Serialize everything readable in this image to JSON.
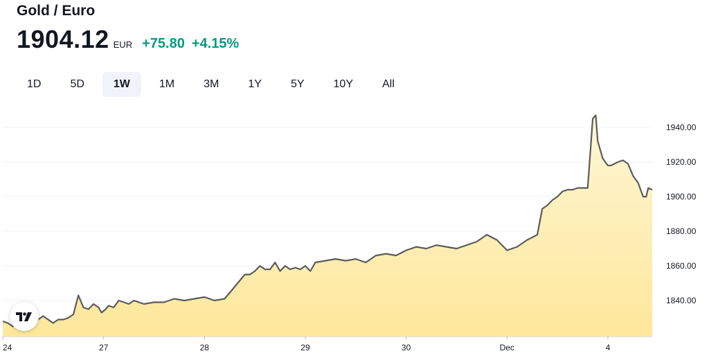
{
  "header": {
    "title": "Gold / Euro",
    "price": "1904.12",
    "currency": "EUR",
    "change": "+75.80",
    "change_pct": "+4.15%"
  },
  "colors": {
    "line": "#5b5b5b",
    "fill_top": "#fde79a",
    "fill_bottom": "#fff7d6",
    "positive": "#089981",
    "active_bg": "#f0f3fa"
  },
  "ranges": [
    "1D",
    "5D",
    "1W",
    "1M",
    "3M",
    "1Y",
    "5Y",
    "10Y",
    "All"
  ],
  "active_range": "1W",
  "chart_data": {
    "type": "area",
    "title": "Gold / Euro",
    "xlabel": "",
    "ylabel": "",
    "ylim": [
      1820,
      1950
    ],
    "xlim": [
      0,
      6.44
    ],
    "grid": "horizontal",
    "x_ticks": [
      {
        "x": 0,
        "label": "24"
      },
      {
        "x": 1,
        "label": "27"
      },
      {
        "x": 2,
        "label": "28"
      },
      {
        "x": 3,
        "label": "29"
      },
      {
        "x": 4,
        "label": "30"
      },
      {
        "x": 5,
        "label": "Dec"
      },
      {
        "x": 6,
        "label": "4"
      }
    ],
    "y_ticks": [
      1840,
      1860,
      1880,
      1900,
      1920,
      1940
    ],
    "series": [
      {
        "name": "",
        "x": [
          0,
          0.05,
          0.1,
          0.2,
          0.3,
          0.4,
          0.5,
          0.55,
          0.6,
          0.65,
          0.7,
          0.75,
          0.8,
          0.85,
          0.9,
          0.95,
          0.98,
          1.02,
          1.05,
          1.1,
          1.15,
          1.2,
          1.25,
          1.3,
          1.4,
          1.5,
          1.6,
          1.7,
          1.8,
          1.9,
          2.0,
          2.1,
          2.2,
          2.3,
          2.4,
          2.45,
          2.5,
          2.55,
          2.6,
          2.65,
          2.7,
          2.75,
          2.8,
          2.85,
          2.9,
          2.95,
          3.0,
          3.05,
          3.1,
          3.2,
          3.3,
          3.4,
          3.5,
          3.6,
          3.7,
          3.8,
          3.9,
          4.0,
          4.1,
          4.2,
          4.3,
          4.4,
          4.5,
          4.6,
          4.7,
          4.8,
          4.9,
          5.0,
          5.1,
          5.2,
          5.3,
          5.35,
          5.4,
          5.45,
          5.5,
          5.55,
          5.6,
          5.65,
          5.7,
          5.75,
          5.8,
          5.85,
          5.88,
          5.9,
          5.95,
          6.0,
          6.03,
          6.1,
          6.15,
          6.2,
          6.25,
          6.3,
          6.35,
          6.38,
          6.4,
          6.44
        ],
        "values": [
          1828,
          1827,
          1825,
          1829,
          1827,
          1831,
          1827,
          1829,
          1829,
          1830,
          1832,
          1843,
          1836,
          1835,
          1838,
          1836,
          1833,
          1835,
          1837,
          1836,
          1840,
          1839,
          1838,
          1840,
          1838,
          1839,
          1839,
          1841,
          1840,
          1841,
          1842,
          1840,
          1841,
          1848,
          1855,
          1855,
          1857,
          1860,
          1858,
          1858,
          1862,
          1857,
          1860,
          1858,
          1859,
          1858,
          1860,
          1857,
          1862,
          1863,
          1864,
          1863,
          1864,
          1862,
          1866,
          1867,
          1866,
          1869,
          1871,
          1870,
          1872,
          1871,
          1870,
          1872,
          1874,
          1878,
          1875,
          1869,
          1871,
          1875,
          1878,
          1893,
          1895,
          1898,
          1900,
          1903,
          1904,
          1904,
          1905,
          1905,
          1905,
          1945,
          1947,
          1932,
          1922,
          1918,
          1918,
          1920,
          1921,
          1919,
          1912,
          1908,
          1900,
          1900,
          1905,
          1904
        ]
      }
    ]
  }
}
